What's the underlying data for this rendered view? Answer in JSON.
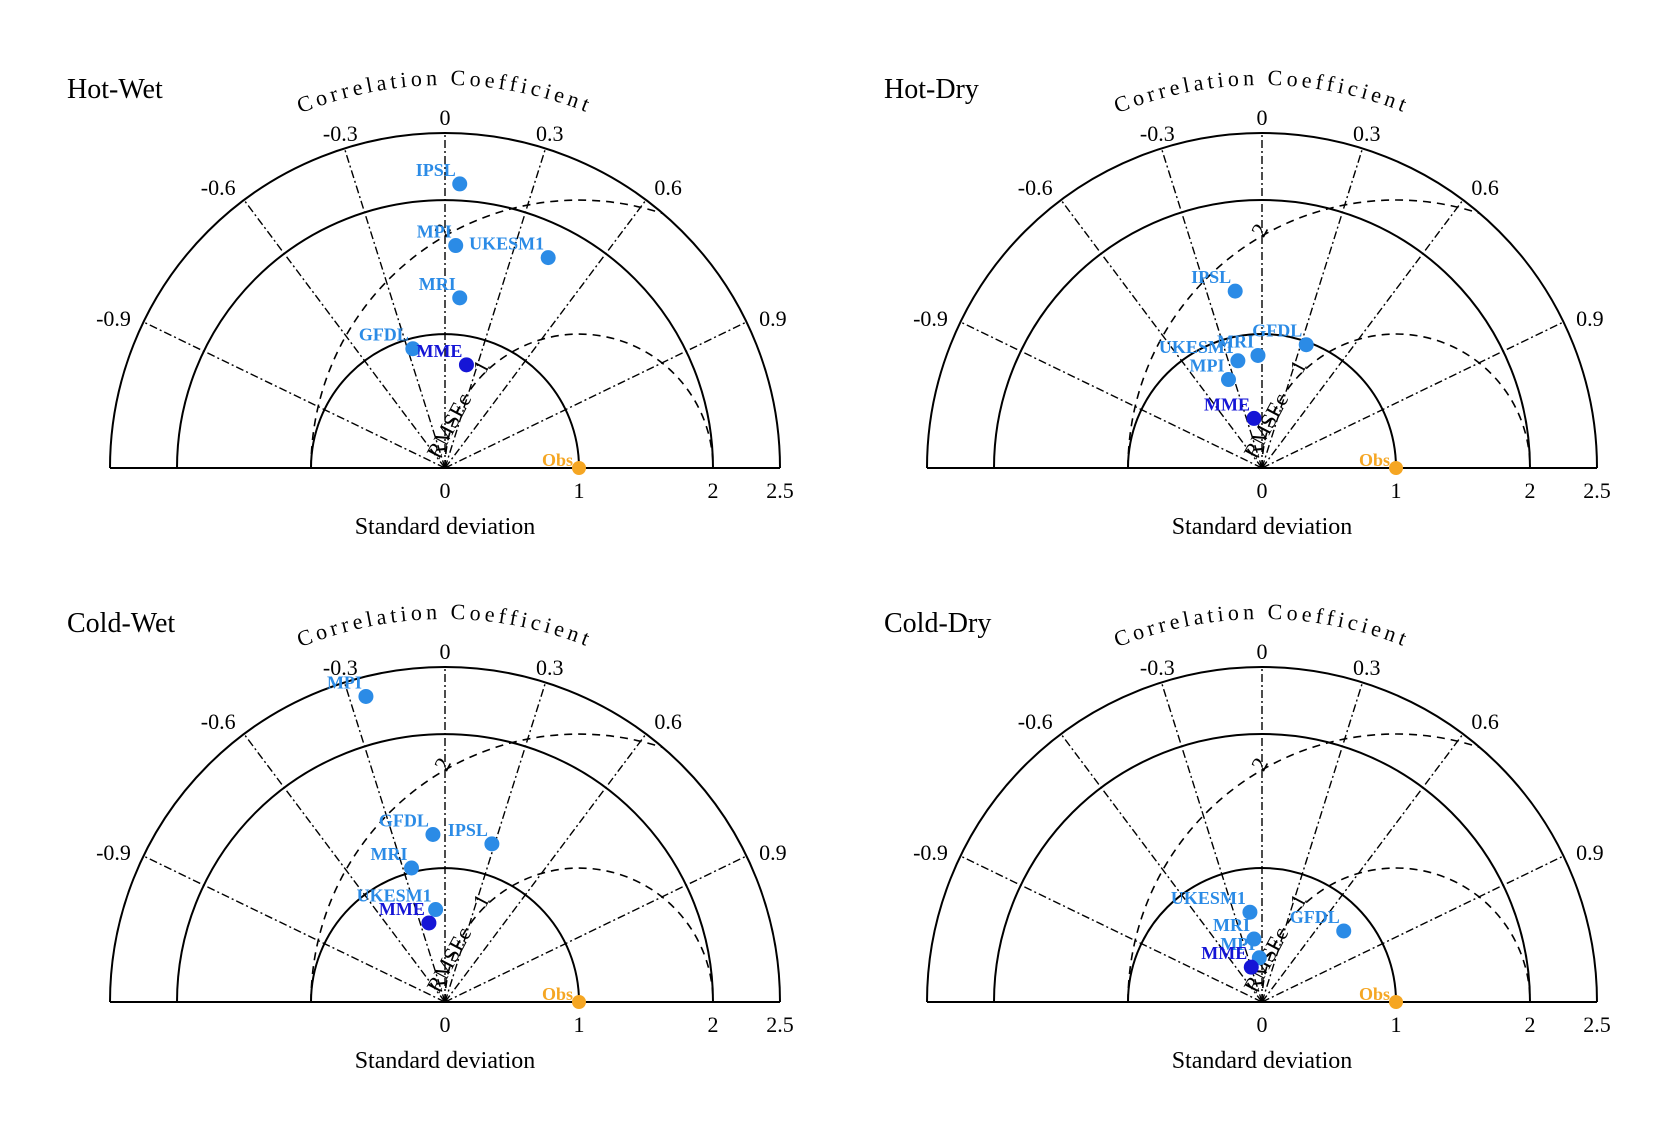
{
  "colors": {
    "axis": "#000000",
    "model_point": "#2b8be6",
    "mme_point": "#1515d6",
    "obs_point": "#f5a623"
  },
  "chart_data": [
    {
      "type": "scatter",
      "subtype": "taylor-diagram",
      "title": "Hot-Wet",
      "xlabel": "Standard deviation",
      "arc_label": "Correlation Coefficient",
      "rms_label": "RMSEc",
      "xlim": [
        -2.5,
        2.5
      ],
      "std_ticks": [
        "0",
        "1",
        "2",
        "2.5"
      ],
      "std_circles": [
        1,
        2,
        2.5
      ],
      "correlation_ticks": [
        "-0.9",
        "-0.6",
        "-0.3",
        "0",
        "0.3",
        "0.6",
        "0.9"
      ],
      "rms_circles": [
        1,
        2
      ],
      "rms_labels": [
        "1",
        "2"
      ],
      "obs": {
        "label": "Obs",
        "x": 1.0,
        "y": 0.0
      },
      "points": [
        {
          "label": "IPSL",
          "x": 0.11,
          "y": 2.12,
          "kind": "model"
        },
        {
          "label": "MPI",
          "x": 0.08,
          "y": 1.66,
          "kind": "model"
        },
        {
          "label": "UKESM1",
          "x": 0.77,
          "y": 1.57,
          "kind": "model"
        },
        {
          "label": "MRI",
          "x": 0.11,
          "y": 1.27,
          "kind": "model"
        },
        {
          "label": "GFDL",
          "x": -0.24,
          "y": 0.89,
          "kind": "model"
        },
        {
          "label": "MME",
          "x": 0.16,
          "y": 0.77,
          "kind": "mme"
        }
      ]
    },
    {
      "type": "scatter",
      "subtype": "taylor-diagram",
      "title": "Hot-Dry",
      "xlabel": "Standard deviation",
      "arc_label": "Correlation Coefficient",
      "rms_label": "RMSEc",
      "xlim": [
        -2.5,
        2.5
      ],
      "std_ticks": [
        "0",
        "1",
        "2",
        "2.5"
      ],
      "std_circles": [
        1,
        2,
        2.5
      ],
      "correlation_ticks": [
        "-0.9",
        "-0.6",
        "-0.3",
        "0",
        "0.3",
        "0.6",
        "0.9"
      ],
      "rms_circles": [
        1,
        2
      ],
      "rms_labels": [
        "1",
        "2"
      ],
      "obs": {
        "label": "Obs",
        "x": 1.0,
        "y": 0.0
      },
      "points": [
        {
          "label": "IPSL",
          "x": -0.2,
          "y": 1.32,
          "kind": "model"
        },
        {
          "label": "GFDL",
          "x": 0.33,
          "y": 0.92,
          "kind": "model"
        },
        {
          "label": "MRI",
          "x": -0.03,
          "y": 0.84,
          "kind": "model"
        },
        {
          "label": "UKESM1",
          "x": -0.18,
          "y": 0.8,
          "kind": "model"
        },
        {
          "label": "MPI",
          "x": -0.25,
          "y": 0.66,
          "kind": "model"
        },
        {
          "label": "MME",
          "x": -0.06,
          "y": 0.37,
          "kind": "mme"
        }
      ]
    },
    {
      "type": "scatter",
      "subtype": "taylor-diagram",
      "title": "Cold-Wet",
      "xlabel": "Standard deviation",
      "arc_label": "Correlation Coefficient",
      "rms_label": "RMSEc",
      "xlim": [
        -2.5,
        2.5
      ],
      "std_ticks": [
        "0",
        "1",
        "2",
        "2.5"
      ],
      "std_circles": [
        1,
        2,
        2.5
      ],
      "correlation_ticks": [
        "-0.9",
        "-0.6",
        "-0.3",
        "0",
        "0.3",
        "0.6",
        "0.9"
      ],
      "rms_circles": [
        1,
        2
      ],
      "rms_labels": [
        "1",
        "2"
      ],
      "obs": {
        "label": "Obs",
        "x": 1.0,
        "y": 0.0
      },
      "points": [
        {
          "label": "MPI",
          "x": -0.59,
          "y": 2.28,
          "kind": "model"
        },
        {
          "label": "GFDL",
          "x": -0.09,
          "y": 1.25,
          "kind": "model"
        },
        {
          "label": "IPSL",
          "x": 0.35,
          "y": 1.18,
          "kind": "model"
        },
        {
          "label": "MRI",
          "x": -0.25,
          "y": 1.0,
          "kind": "model"
        },
        {
          "label": "UKESM1",
          "x": -0.07,
          "y": 0.69,
          "kind": "model"
        },
        {
          "label": "MME",
          "x": -0.12,
          "y": 0.59,
          "kind": "mme"
        }
      ]
    },
    {
      "type": "scatter",
      "subtype": "taylor-diagram",
      "title": "Cold-Dry",
      "xlabel": "Standard deviation",
      "arc_label": "Correlation Coefficient",
      "rms_label": "RMSEc",
      "xlim": [
        -2.5,
        2.5
      ],
      "std_ticks": [
        "0",
        "1",
        "2",
        "2.5"
      ],
      "std_circles": [
        1,
        2,
        2.5
      ],
      "correlation_ticks": [
        "-0.9",
        "-0.6",
        "-0.3",
        "0",
        "0.3",
        "0.6",
        "0.9"
      ],
      "rms_circles": [
        1,
        2
      ],
      "rms_labels": [
        "1",
        "2"
      ],
      "obs": {
        "label": "Obs",
        "x": 1.0,
        "y": 0.0
      },
      "points": [
        {
          "label": "GFDL",
          "x": 0.61,
          "y": 0.53,
          "kind": "model"
        },
        {
          "label": "UKESM1",
          "x": -0.09,
          "y": 0.67,
          "kind": "model"
        },
        {
          "label": "MRI",
          "x": -0.06,
          "y": 0.47,
          "kind": "model"
        },
        {
          "label": "MPI",
          "x": -0.02,
          "y": 0.33,
          "kind": "model"
        },
        {
          "label": "MME",
          "x": -0.08,
          "y": 0.26,
          "kind": "mme"
        }
      ]
    }
  ]
}
